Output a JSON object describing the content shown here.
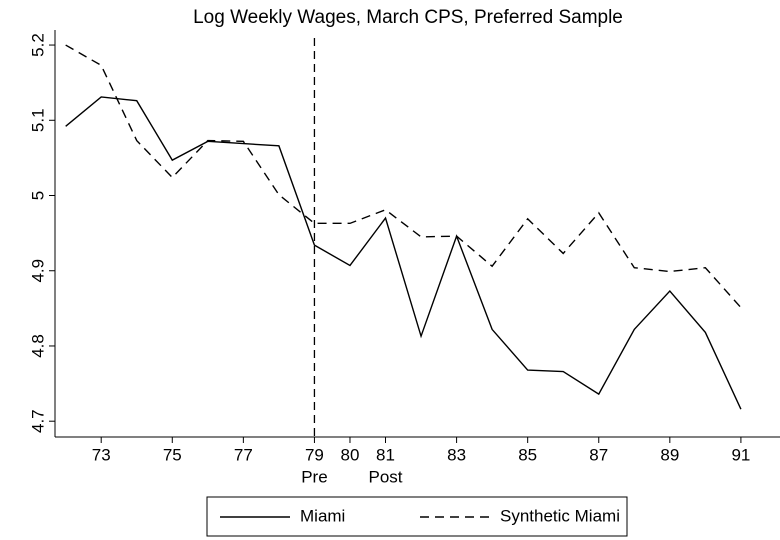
{
  "chart_data": {
    "type": "line",
    "title": "Log Weekly Wages, March CPS, Preferred Sample",
    "x": [
      72,
      73,
      74,
      75,
      76,
      77,
      78,
      79,
      80,
      81,
      82,
      83,
      84,
      85,
      86,
      87,
      88,
      89,
      90,
      91
    ],
    "series": [
      {
        "name": "Miami",
        "color": "#000000",
        "dash": "solid",
        "values": [
          5.092,
          5.131,
          5.126,
          5.047,
          5.072,
          5.069,
          5.066,
          4.934,
          4.907,
          4.97,
          4.813,
          4.946,
          4.822,
          4.768,
          4.766,
          4.736,
          4.822,
          4.873,
          4.818,
          4.716
        ]
      },
      {
        "name": "Synthetic Miami",
        "color": "#000000",
        "dash": "dashed",
        "values": [
          5.2,
          5.173,
          5.073,
          5.024,
          5.073,
          5.072,
          5.001,
          4.963,
          4.963,
          4.981,
          4.945,
          4.946,
          4.906,
          4.969,
          4.923,
          4.977,
          4.904,
          4.899,
          4.904,
          4.851
        ]
      }
    ],
    "xlim": [
      71.7,
      92.1
    ],
    "ylim": [
      4.679,
      5.22
    ],
    "xticks": [
      73,
      75,
      77,
      79,
      80,
      81,
      83,
      85,
      87,
      89,
      91
    ],
    "yticks": [
      4.7,
      4.8,
      4.9,
      5,
      5.1,
      5.2
    ],
    "vline": 79,
    "annotations": [
      {
        "x": 79,
        "text": "Pre"
      },
      {
        "x": 81,
        "text": "Post"
      }
    ],
    "legend": "bottom"
  }
}
